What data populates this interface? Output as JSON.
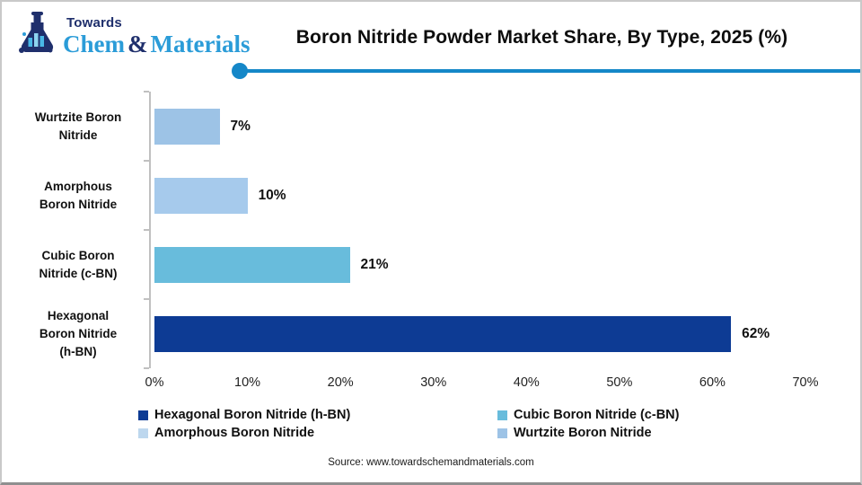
{
  "brand": {
    "name_top": "Towards",
    "name_part1": "Chem",
    "name_amp": "&",
    "name_part2": "Materials",
    "navy": "#1f2f6c",
    "blue": "#2b9cd8"
  },
  "header": {
    "title": "Boron Nitride Powder Market Share, By Type, 2025 (%)",
    "accent_color": "#1587c8"
  },
  "chart_data": {
    "type": "bar",
    "orientation": "horizontal",
    "title": "Boron Nitride Powder Market Share, By Type, 2025 (%)",
    "categories": [
      "Wurtzite Boron Nitride",
      "Amorphous Boron Nitride",
      "Cubic Boron Nitride (c-BN)",
      "Hexagonal Boron Nitride (h-BN)"
    ],
    "category_label_lines": [
      [
        "Wurtzite Boron",
        "Nitride"
      ],
      [
        "Amorphous",
        "Boron Nitride"
      ],
      [
        "Cubic Boron",
        "Nitride (c-BN)"
      ],
      [
        "Hexagonal",
        "Boron Nitride",
        "(h-BN)"
      ]
    ],
    "values": [
      7,
      10,
      21,
      62
    ],
    "value_labels": [
      "7%",
      "10%",
      "21%",
      "62%"
    ],
    "bar_colors": [
      "#9dc3e6",
      "#a6caec",
      "#68bcdc",
      "#0d3b94"
    ],
    "xlim": [
      0,
      70
    ],
    "x_ticks": [
      0,
      10,
      20,
      30,
      40,
      50,
      60,
      70
    ],
    "x_tick_labels": [
      "0%",
      "10%",
      "20%",
      "30%",
      "40%",
      "50%",
      "60%",
      "70%"
    ],
    "grid": false,
    "axis_color": "#c0c0c0",
    "legend_position": "bottom",
    "legend": [
      {
        "label": "Hexagonal Boron Nitride (h-BN)",
        "color": "#0d3b94"
      },
      {
        "label": "Cubic Boron Nitride (c-BN)",
        "color": "#68bcdc"
      },
      {
        "label": "Amorphous Boron Nitride",
        "color": "#bdd7ee"
      },
      {
        "label": "Wurtzite Boron Nitride",
        "color": "#9dc3e6"
      }
    ]
  },
  "footer": {
    "source": "Source: www.towardschemandmaterials.com"
  }
}
